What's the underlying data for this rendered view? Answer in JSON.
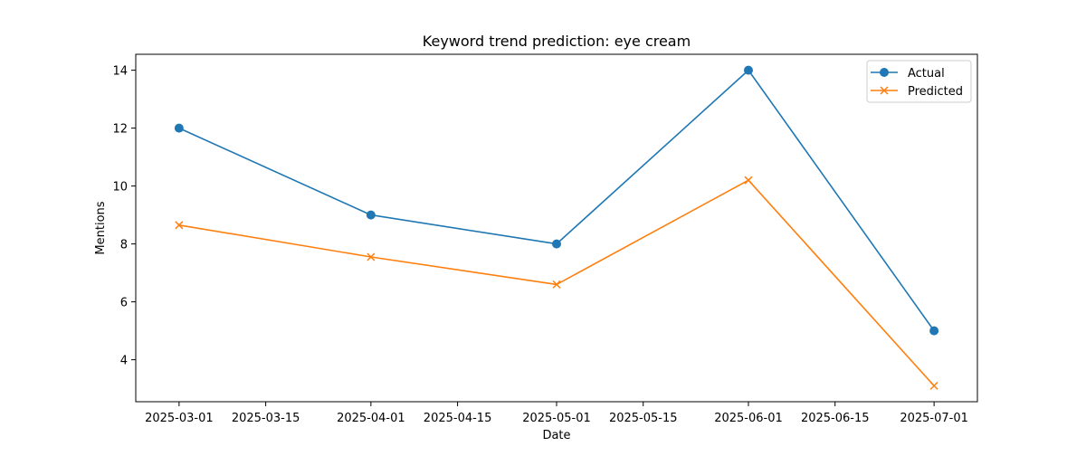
{
  "chart_data": {
    "type": "line",
    "title": "Keyword trend prediction: eye cream",
    "xlabel": "Date",
    "ylabel": "Mentions",
    "x_ticks": [
      "2025-03-01",
      "2025-03-15",
      "2025-04-01",
      "2025-04-15",
      "2025-05-01",
      "2025-05-15",
      "2025-06-01",
      "2025-06-15",
      "2025-07-01"
    ],
    "y_ticks": [
      4,
      6,
      8,
      10,
      12,
      14
    ],
    "xlim": [
      "2025-02-22",
      "2025-07-08"
    ],
    "ylim": [
      2.55,
      14.55
    ],
    "grid": false,
    "legend_position": "upper right",
    "series": [
      {
        "name": "Actual",
        "color": "#1f77b4",
        "marker": "circle",
        "x": [
          "2025-03-01",
          "2025-04-01",
          "2025-05-01",
          "2025-06-01",
          "2025-07-01"
        ],
        "y": [
          12,
          9,
          8,
          14,
          5
        ]
      },
      {
        "name": "Predicted",
        "color": "#ff7f0e",
        "marker": "x",
        "x": [
          "2025-03-01",
          "2025-04-01",
          "2025-05-01",
          "2025-06-01",
          "2025-07-01"
        ],
        "y": [
          8.65,
          7.55,
          6.6,
          10.2,
          3.1
        ]
      }
    ]
  }
}
